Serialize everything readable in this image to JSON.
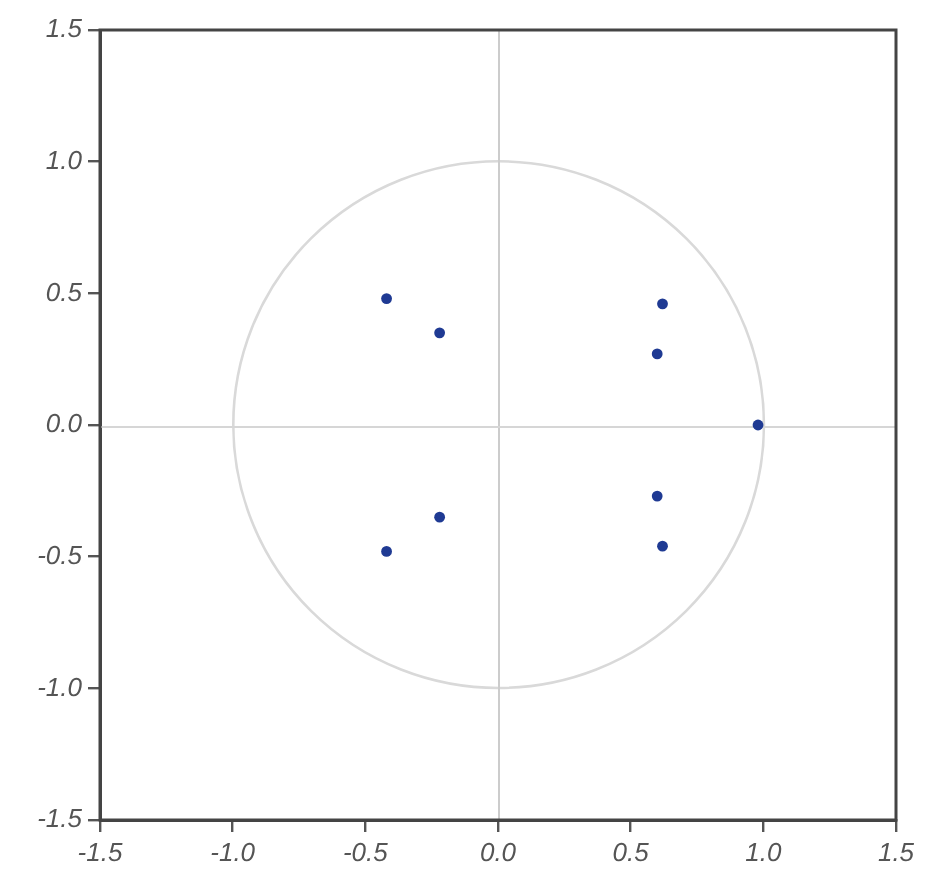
{
  "chart_data": {
    "type": "scatter",
    "x": [
      -0.42,
      -0.22,
      0.62,
      0.6,
      0.98,
      0.6,
      0.62,
      -0.22,
      -0.42
    ],
    "series": [
      {
        "color": "#1f3a93",
        "values": [
          0.48,
          0.35,
          0.46,
          0.27,
          0,
          -0.27,
          -0.46,
          -0.35,
          -0.48
        ]
      }
    ],
    "xlim": [
      -1.5,
      1.5
    ],
    "ylim": [
      -1.5,
      1.5
    ],
    "xticks": [
      -1.5,
      {
        "value": -1,
        "label": "-1.0"
      },
      -0.5,
      {
        "value": 0,
        "label": "0.0"
      },
      0.5,
      {
        "value": 1,
        "label": "1.0"
      },
      1.5
    ],
    "yticks": [
      -1.5,
      {
        "value": -1,
        "label": "-1.0"
      },
      -0.5,
      {
        "value": 0,
        "label": "0.0"
      },
      0.5,
      {
        "value": 1,
        "label": "1.0"
      },
      1.5
    ],
    "ref_lines": [
      {
        "axis": "x",
        "value": 0,
        "color": "#cccccc"
      },
      {
        "axis": "y",
        "value": 0,
        "color": "#d6d6d6"
      }
    ],
    "marker": "circle",
    "grid": false,
    "legend": false
  }
}
